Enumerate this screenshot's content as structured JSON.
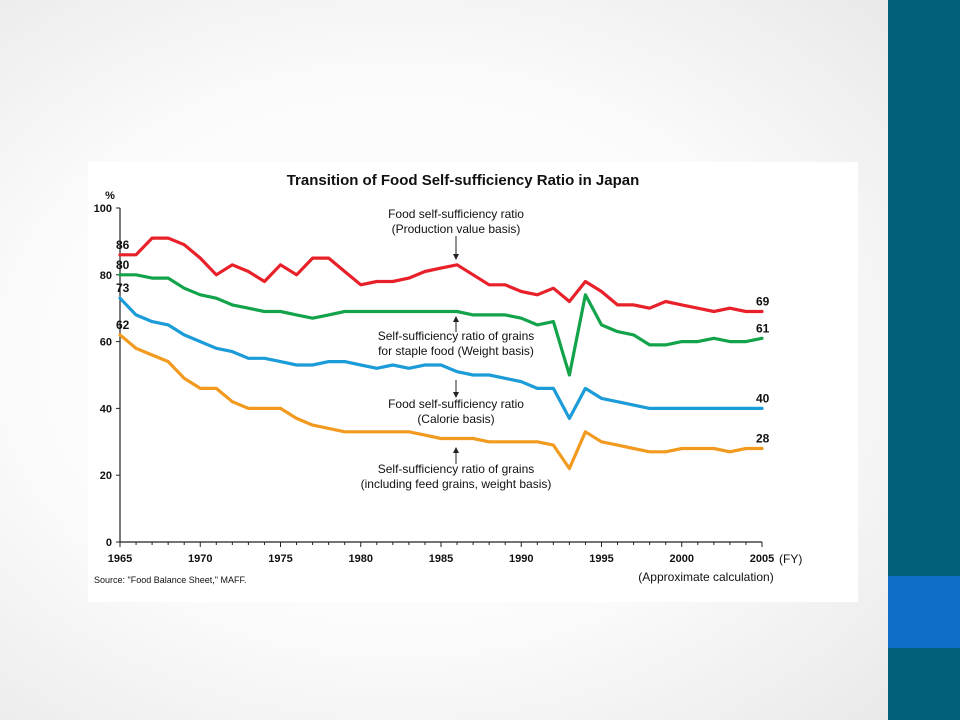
{
  "chart_data": {
    "type": "line",
    "title": "Transition of Food Self-sufficiency Ratio in Japan",
    "ylabel": "%",
    "xlabel": "(FY)",
    "x_note": "(Approximate calculation)",
    "source": "Source: \"Food Balance Sheet,\" MAFF.",
    "ylim": [
      0,
      100
    ],
    "xlim": [
      1965,
      2005
    ],
    "y_ticks": [
      0,
      20,
      40,
      60,
      80,
      100
    ],
    "x_ticks": [
      1965,
      1970,
      1975,
      1980,
      1985,
      1990,
      1995,
      2000,
      2005
    ],
    "x": [
      1965,
      1966,
      1967,
      1968,
      1969,
      1970,
      1971,
      1972,
      1973,
      1974,
      1975,
      1976,
      1977,
      1978,
      1979,
      1980,
      1981,
      1982,
      1983,
      1984,
      1985,
      1986,
      1987,
      1988,
      1989,
      1990,
      1991,
      1992,
      1993,
      1994,
      1995,
      1996,
      1997,
      1998,
      1999,
      2000,
      2001,
      2002,
      2003,
      2004,
      2005
    ],
    "series": [
      {
        "color": "#e8202a",
        "start_label": "86",
        "end_label": "69",
        "values": [
          86,
          86,
          91,
          91,
          89,
          85,
          80,
          83,
          81,
          78,
          83,
          80,
          85,
          85,
          81,
          77,
          78,
          78,
          79,
          81,
          82,
          83,
          80,
          77,
          77,
          75,
          74,
          76,
          72,
          78,
          75,
          71,
          71,
          70,
          72,
          71,
          70,
          69,
          70,
          69,
          69
        ]
      },
      {
        "color": "#13a34a",
        "start_label": "80",
        "end_label": "61",
        "values": [
          80,
          80,
          79,
          79,
          76,
          74,
          73,
          71,
          70,
          69,
          69,
          68,
          67,
          68,
          69,
          69,
          69,
          69,
          69,
          69,
          69,
          69,
          68,
          68,
          68,
          67,
          65,
          66,
          50,
          74,
          65,
          63,
          62,
          59,
          59,
          60,
          60,
          61,
          60,
          60,
          61
        ]
      },
      {
        "color": "#1b9bd7",
        "start_label": "73",
        "end_label": "40",
        "values": [
          73,
          68,
          66,
          65,
          62,
          60,
          58,
          57,
          55,
          55,
          54,
          53,
          53,
          54,
          54,
          53,
          52,
          53,
          52,
          53,
          53,
          51,
          50,
          50,
          49,
          48,
          46,
          46,
          37,
          46,
          43,
          42,
          41,
          40,
          40,
          40,
          40,
          40,
          40,
          40,
          40
        ]
      },
      {
        "color": "#f29a1f",
        "start_label": "62",
        "end_label": "28",
        "values": [
          62,
          58,
          56,
          54,
          49,
          46,
          46,
          42,
          40,
          40,
          40,
          37,
          35,
          34,
          33,
          33,
          33,
          33,
          33,
          32,
          31,
          31,
          31,
          30,
          30,
          30,
          30,
          29,
          22,
          33,
          30,
          29,
          28,
          27,
          27,
          28,
          28,
          28,
          27,
          28,
          28
        ]
      }
    ],
    "annotations": [
      {
        "lines": [
          "Food self-sufficiency ratio",
          "(Production value basis)"
        ]
      },
      {
        "lines": [
          "Self-sufficiency ratio of grains",
          "for staple food (Weight basis)"
        ]
      },
      {
        "lines": [
          "Food self-sufficiency ratio",
          "(Calorie basis)"
        ]
      },
      {
        "lines": [
          "Self-sufficiency ratio of grains",
          "(including feed grains, weight basis)"
        ]
      }
    ],
    "grid": false,
    "legend": "none"
  }
}
